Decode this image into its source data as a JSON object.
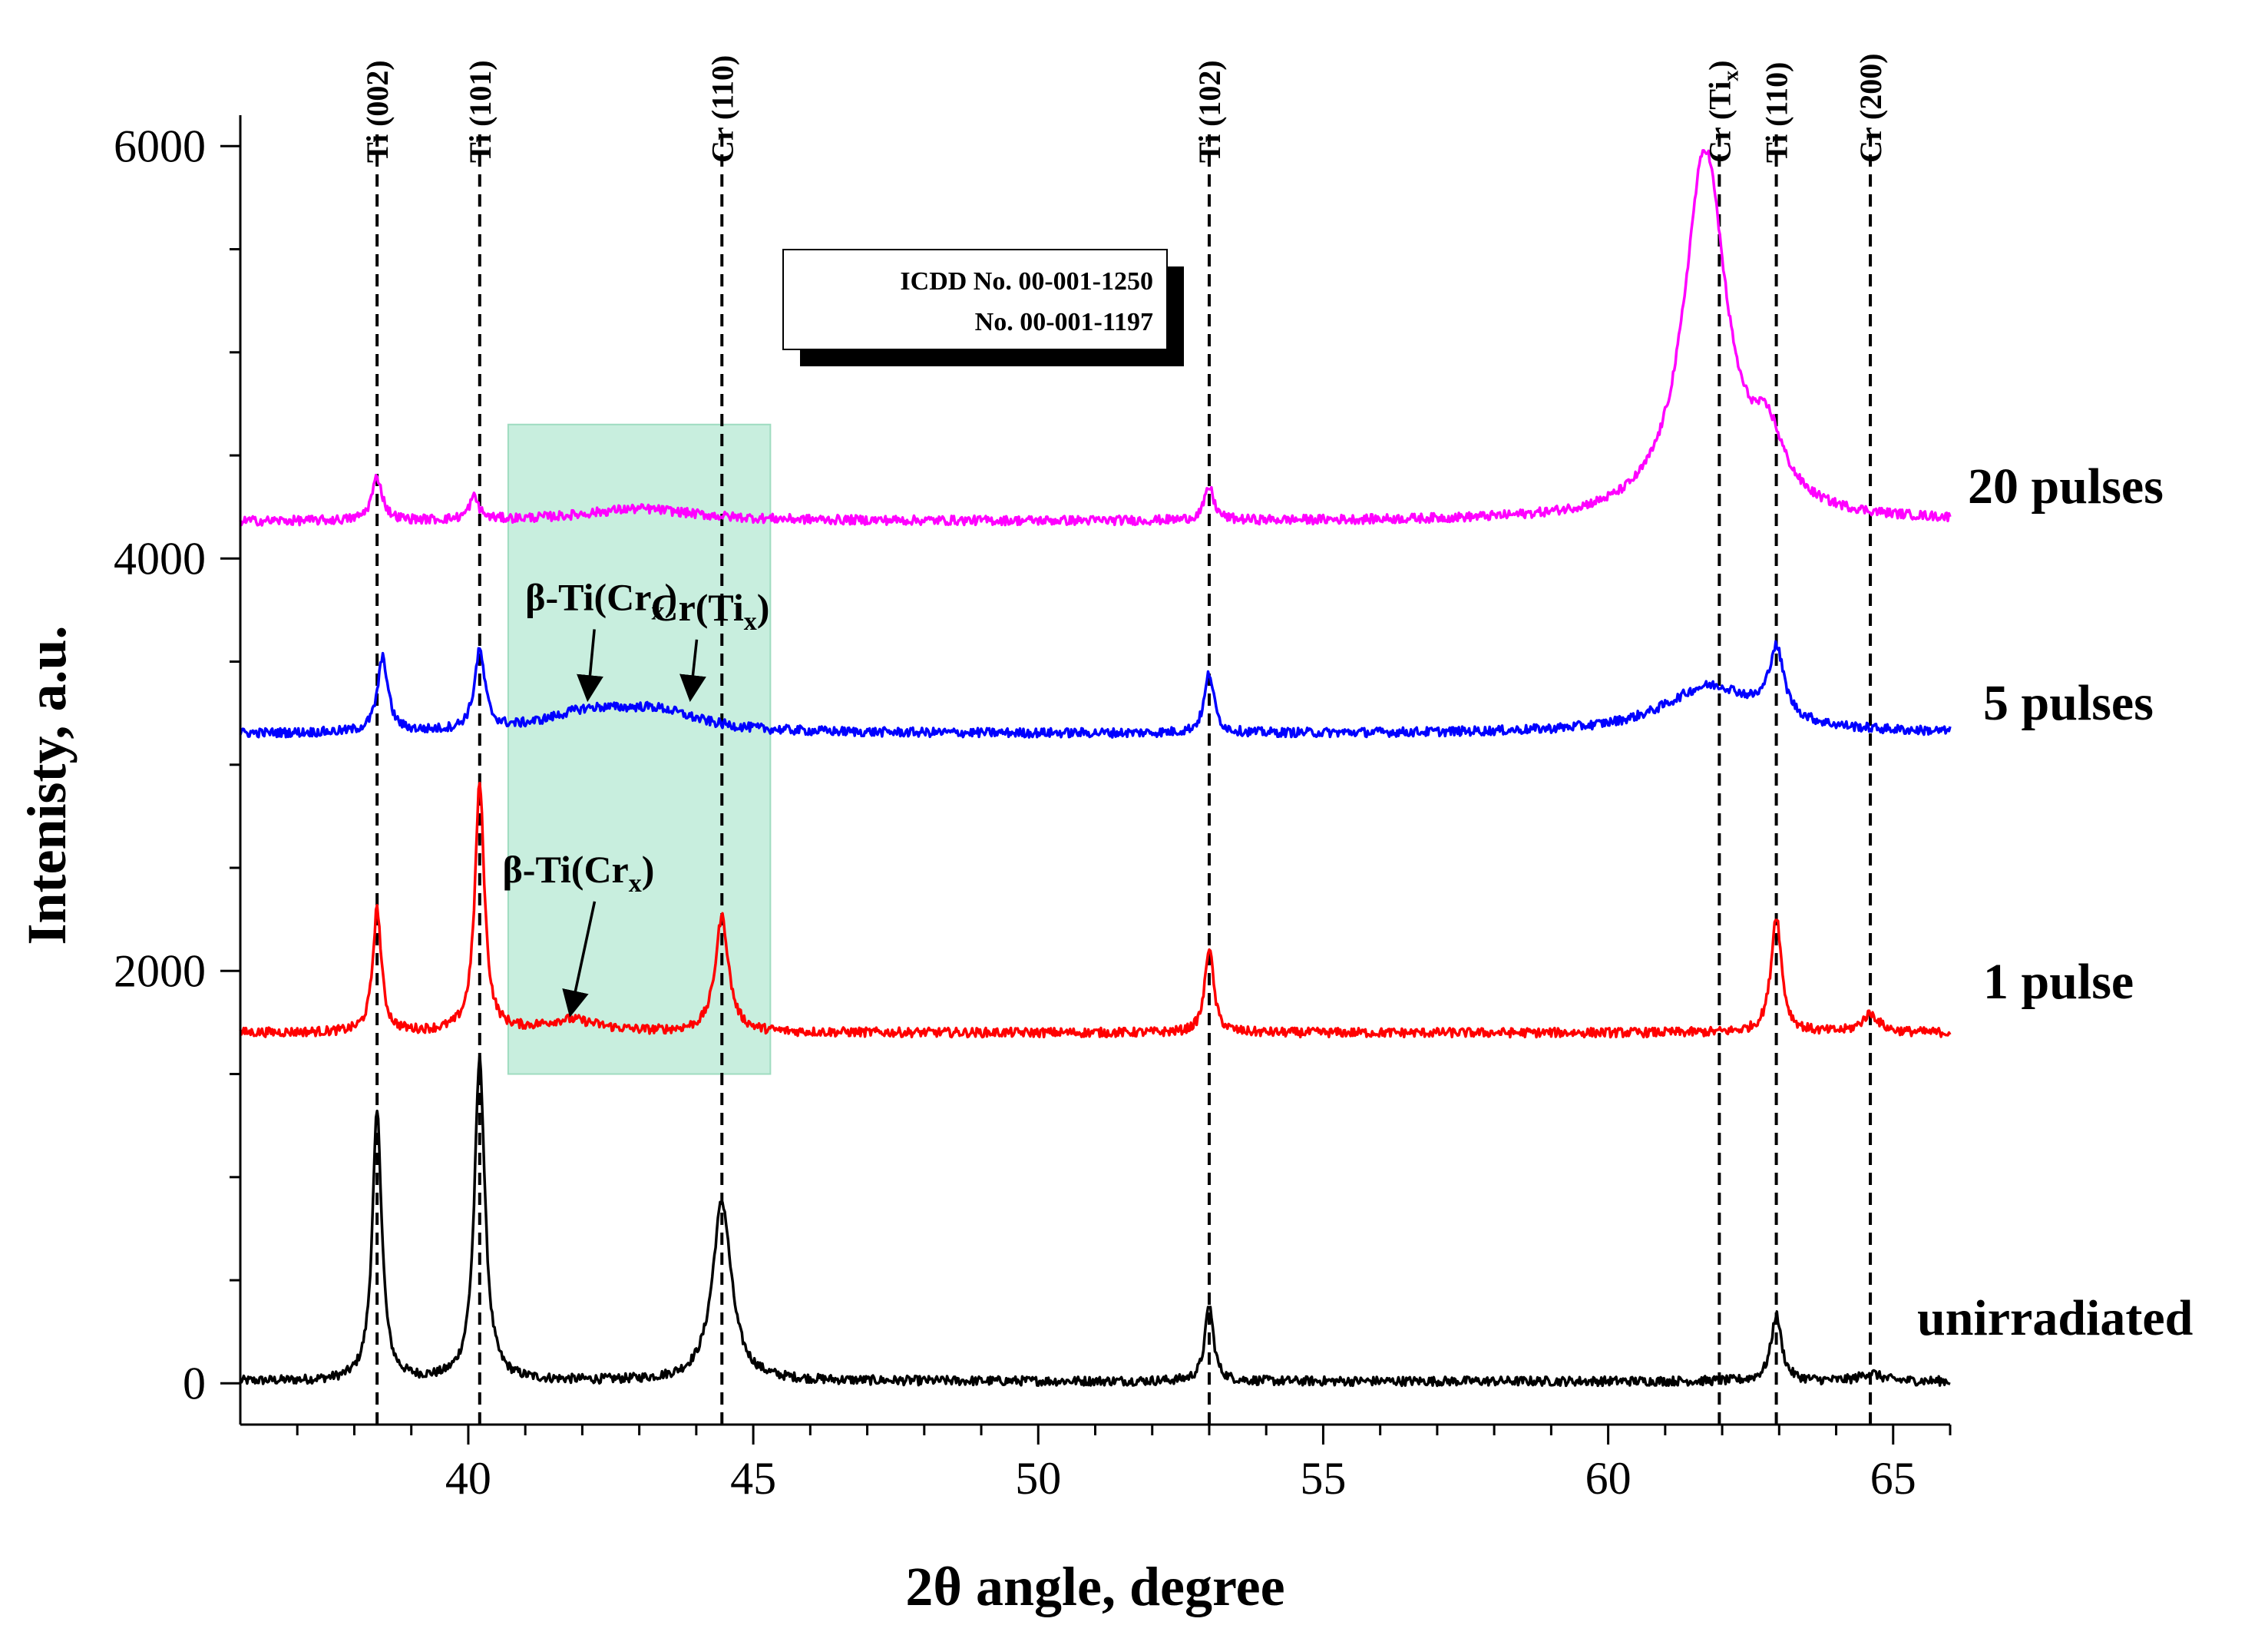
{
  "chart_data": {
    "type": "line",
    "title": "",
    "xlabel": "2θ angle, degree",
    "ylabel": "Intenisty, a.u.",
    "xlim": [
      36,
      66
    ],
    "ylim": [
      -200,
      6150
    ],
    "xticks": [
      40,
      45,
      50,
      55,
      60,
      65
    ],
    "yticks": [
      0,
      2000,
      4000,
      6000
    ],
    "grid": false,
    "legend": "labels at right end of each curve",
    "reference_lines": [
      {
        "x": 38.4,
        "label": "Ti (002)"
      },
      {
        "x": 40.2,
        "label": "Ti (101)"
      },
      {
        "x": 44.45,
        "label": "Cr (110)"
      },
      {
        "x": 53.0,
        "label": "Ti (102)"
      },
      {
        "x": 61.95,
        "label": "Cr (Ti",
        "sub": "x",
        "suffix": ")"
      },
      {
        "x": 62.95,
        "label": "Ti (110)"
      },
      {
        "x": 64.6,
        "label": "Cr (200)"
      }
    ],
    "icdd_box": {
      "line1": "ICDD No. 00-001-1250",
      "line2": "No. 00-001-1197"
    },
    "highlight_region": {
      "x": [
        40.7,
        45.3
      ],
      "y": [
        1500,
        4650
      ],
      "color": "#c8eede"
    },
    "annotations": [
      {
        "text": "β-Ti(Cr",
        "sub": "x",
        "suffix": ")",
        "text_x": 41.0,
        "text_y": 3750,
        "arrow_to_x": 42.1,
        "arrow_to_y": 3330
      },
      {
        "text": "Cr(Ti",
        "sub": "x",
        "suffix": ")",
        "text_x": 43.2,
        "text_y": 3700,
        "arrow_to_x": 43.9,
        "arrow_to_y": 3330
      },
      {
        "text": "β-Ti(Cr",
        "sub": "x",
        "suffix": ")",
        "text_x": 40.6,
        "text_y": 2430,
        "arrow_to_x": 41.8,
        "arrow_to_y": 1800
      }
    ],
    "series": [
      {
        "name": "unirradiated",
        "color": "#000000",
        "baseline": 10,
        "peaks": [
          [
            38.4,
            1300,
            0.1
          ],
          [
            40.2,
            1560,
            0.11
          ],
          [
            44.45,
            870,
            0.2
          ],
          [
            53.0,
            370,
            0.09
          ],
          [
            62.95,
            320,
            0.11
          ],
          [
            64.6,
            40,
            0.2
          ]
        ]
      },
      {
        "name": "1 pulse",
        "color": "#ff0000",
        "baseline": 1700,
        "peaks": [
          [
            38.4,
            600,
            0.09
          ],
          [
            40.2,
            1200,
            0.1
          ],
          [
            41.8,
            60,
            0.6
          ],
          [
            44.45,
            560,
            0.14
          ],
          [
            53.0,
            420,
            0.09
          ],
          [
            62.95,
            570,
            0.11
          ],
          [
            64.6,
            90,
            0.18
          ]
        ]
      },
      {
        "name": "5 pulses",
        "color": "#0000ff",
        "baseline": 3150,
        "peaks": [
          [
            38.5,
            360,
            0.11
          ],
          [
            40.2,
            380,
            0.11
          ],
          [
            42.1,
            90,
            0.9
          ],
          [
            43.3,
            95,
            0.9
          ],
          [
            53.0,
            290,
            0.1
          ],
          [
            61.8,
            230,
            1.0
          ],
          [
            62.95,
            330,
            0.16
          ]
        ]
      },
      {
        "name": "20 pulses",
        "color": "#ff00ff",
        "baseline": 4180,
        "peaks": [
          [
            38.4,
            210,
            0.11
          ],
          [
            40.1,
            110,
            0.1
          ],
          [
            43.0,
            60,
            1.2
          ],
          [
            53.0,
            160,
            0.1
          ],
          [
            61.7,
            1780,
            0.45
          ],
          [
            62.8,
            300,
            0.35
          ]
        ]
      }
    ]
  }
}
